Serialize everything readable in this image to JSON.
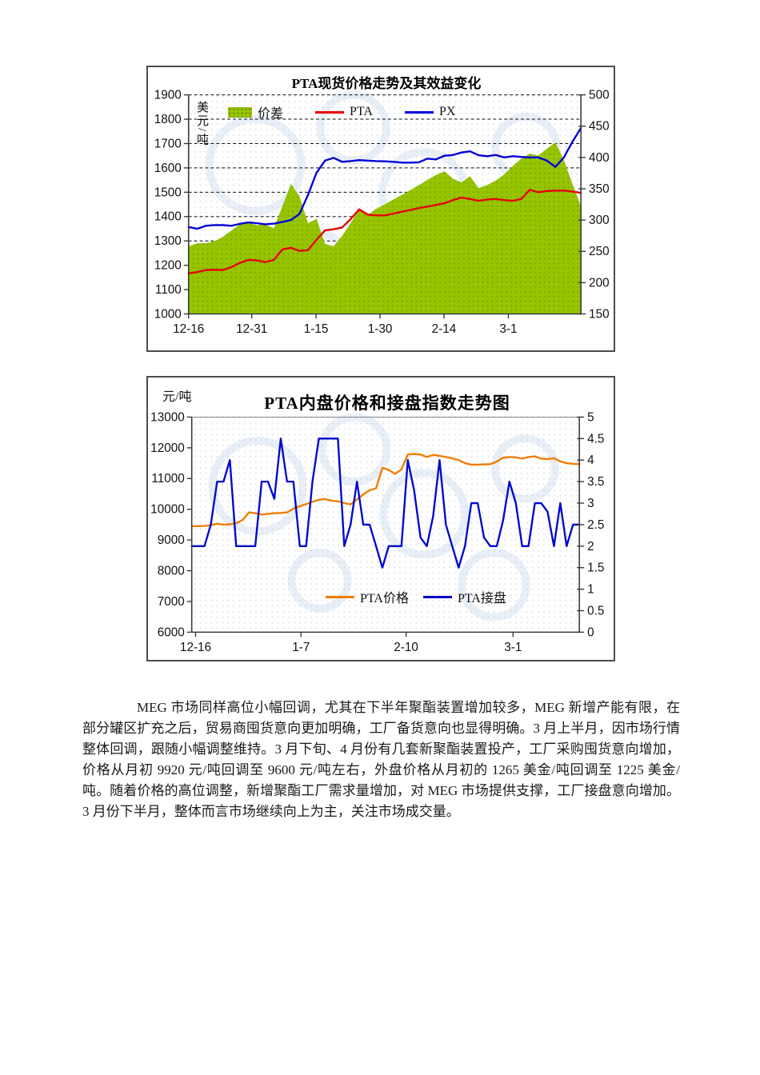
{
  "paragraph": {
    "text": "MEG 市场同样高位小幅回调，尤其在下半年聚酯装置增加较多，MEG 新增产能有限，在部分罐区扩充之后，贸易商囤货意向更加明确，工厂备货意向也显得明确。3 月上半月，因市场行情整体回调，跟随小幅调整维持。3 月下旬、4 月份有几套新聚酯装置投产，工厂采购囤货意向增加，价格从月初 9920 元/吨回调至 9600 元/吨左右，外盘价格从月初的 1265 美金/吨回调至 1225 美金/吨。随着价格的高位调整，新增聚酯工厂需求量增加，对 MEG 市场提供支撑，工厂接盘意向增加。3 月份下半月，整体而言市场继续向上为主，关注市场成交量。"
  },
  "chart_data": [
    {
      "type": "area+line",
      "title": "PTA现货价格走势及其效益变化",
      "grid": true,
      "legend_position": "top-inside",
      "y_left": {
        "label": "美元/吨",
        "min": 1000,
        "max": 1900,
        "ticks": [
          1900,
          1800,
          1700,
          1600,
          1500,
          1400,
          1300,
          1200,
          1100,
          1000
        ]
      },
      "y_right": {
        "min": 150,
        "max": 500,
        "ticks": [
          500,
          450,
          400,
          350,
          300,
          250,
          200,
          150
        ]
      },
      "x_ticks": [
        {
          "label": "12-16",
          "pos": 0.0
        },
        {
          "label": "12-31",
          "pos": 0.161
        },
        {
          "label": "1-15",
          "pos": 0.325
        },
        {
          "label": "1-30",
          "pos": 0.488
        },
        {
          "label": "2-14",
          "pos": 0.651
        },
        {
          "label": "3-1",
          "pos": 0.815
        }
      ],
      "series": [
        {
          "name": "价差",
          "type": "area",
          "axis": "right",
          "color": "#97c400",
          "values": [
            258,
            263,
            263,
            266,
            273,
            283,
            293,
            296,
            292,
            293,
            287,
            322,
            358,
            338,
            295,
            302,
            262,
            258,
            275,
            295,
            318,
            308,
            318,
            325,
            333,
            340,
            348,
            356,
            364,
            372,
            378,
            366,
            360,
            370,
            351,
            356,
            363,
            373,
            386,
            398,
            406,
            403,
            414,
            424,
            396,
            358,
            322
          ]
        },
        {
          "name": "PTA",
          "type": "line",
          "axis": "left",
          "color": "#e60000",
          "values": [
            1167,
            1172,
            1180,
            1182,
            1180,
            1192,
            1210,
            1222,
            1220,
            1213,
            1222,
            1265,
            1272,
            1259,
            1262,
            1305,
            1343,
            1348,
            1355,
            1390,
            1430,
            1408,
            1405,
            1405,
            1412,
            1420,
            1427,
            1435,
            1441,
            1448,
            1455,
            1468,
            1478,
            1472,
            1465,
            1470,
            1472,
            1468,
            1465,
            1472,
            1510,
            1500,
            1505,
            1507,
            1507,
            1503,
            1497
          ]
        },
        {
          "name": "PX",
          "type": "line",
          "axis": "left",
          "color": "#0000d9",
          "values": [
            1357,
            1350,
            1362,
            1365,
            1365,
            1362,
            1370,
            1376,
            1373,
            1368,
            1371,
            1378,
            1386,
            1411,
            1489,
            1580,
            1630,
            1641,
            1625,
            1628,
            1632,
            1630,
            1628,
            1627,
            1625,
            1622,
            1622,
            1623,
            1638,
            1635,
            1650,
            1653,
            1663,
            1668,
            1652,
            1648,
            1653,
            1643,
            1648,
            1645,
            1643,
            1643,
            1630,
            1604,
            1643,
            1707,
            1764
          ]
        }
      ]
    },
    {
      "type": "line",
      "title": "PTA内盘价格和接盘指数走势图",
      "grid": false,
      "legend_position": "bottom-inside",
      "y_left": {
        "label": "元/吨",
        "min": 6000,
        "max": 13000,
        "ticks": [
          13000,
          12000,
          11000,
          10000,
          9000,
          8000,
          7000,
          6000
        ]
      },
      "y_right": {
        "min": 0,
        "max": 5,
        "ticks": [
          5,
          4.5,
          4,
          3.5,
          3,
          2.5,
          2,
          1.5,
          1,
          0.5,
          0
        ]
      },
      "x_ticks": [
        {
          "label": "12-16",
          "pos": 0.01
        },
        {
          "label": "1-7",
          "pos": 0.282
        },
        {
          "label": "2-10",
          "pos": 0.553
        },
        {
          "label": "3-1",
          "pos": 0.829
        }
      ],
      "series": [
        {
          "name": "PTA价格",
          "type": "line",
          "axis": "left",
          "color": "#ef7d00",
          "values": [
            9450,
            9450,
            9460,
            9480,
            9530,
            9500,
            9510,
            9550,
            9650,
            9900,
            9870,
            9830,
            9850,
            9870,
            9880,
            9900,
            10020,
            10100,
            10170,
            10240,
            10310,
            10330,
            10280,
            10260,
            10200,
            10160,
            10320,
            10480,
            10620,
            10680,
            11350,
            11280,
            11150,
            11300,
            11780,
            11800,
            11780,
            11700,
            11770,
            11740,
            11700,
            11660,
            11600,
            11500,
            11450,
            11450,
            11460,
            11470,
            11550,
            11680,
            11700,
            11690,
            11650,
            11700,
            11720,
            11650,
            11630,
            11660,
            11560,
            11500,
            11480,
            11470
          ]
        },
        {
          "name": "PTA接盘",
          "type": "line",
          "axis": "right",
          "color": "#0009cf",
          "values": [
            2,
            2,
            2,
            2.5,
            3.5,
            3.5,
            4,
            2,
            2,
            2,
            2,
            3.5,
            3.5,
            3.1,
            4.5,
            3.5,
            3.5,
            2,
            2,
            3.5,
            4.5,
            4.5,
            4.5,
            4.5,
            2,
            2.5,
            3.5,
            2.5,
            2.5,
            2,
            1.5,
            2,
            2,
            2,
            4,
            3.3,
            2.2,
            2,
            2.7,
            4,
            2.5,
            2,
            1.5,
            2,
            3,
            3,
            2.2,
            2,
            2,
            2.6,
            3.5,
            3,
            2,
            2,
            3,
            3,
            2.8,
            2,
            3,
            2,
            2.5,
            2.5
          ]
        }
      ]
    }
  ]
}
